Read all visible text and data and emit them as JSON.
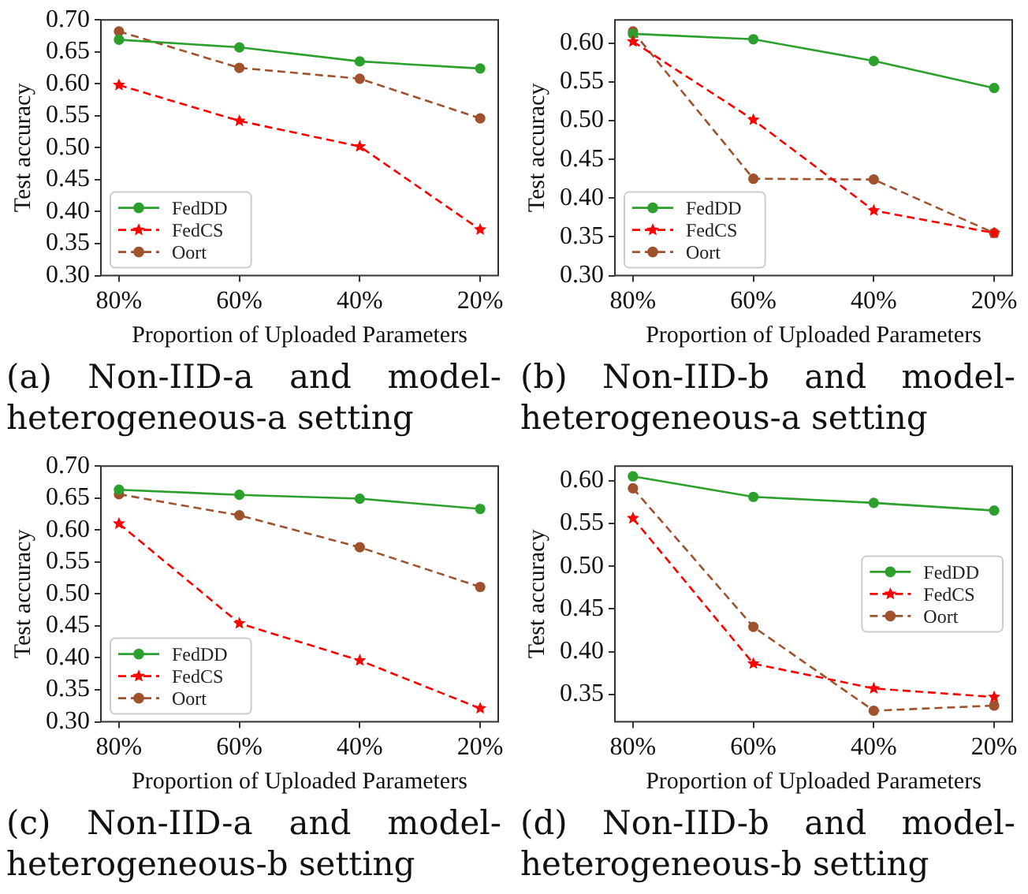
{
  "chart_data": [
    {
      "type": "line",
      "title": "(a) Non-IID-a and model-heterogeneous-a setting",
      "xlabel": "Proportion of Uploaded Parameters",
      "ylabel": "Test accuracy",
      "categories": [
        "80%",
        "60%",
        "40%",
        "20%"
      ],
      "series": [
        {
          "name": "FedDD",
          "color": "#2ca02c",
          "marker": "circle",
          "line_style": "solid",
          "values": [
            0.669,
            0.657,
            0.635,
            0.624
          ]
        },
        {
          "name": "FedCS",
          "color": "#ff0000",
          "marker": "star",
          "line_style": "dashed",
          "values": [
            0.598,
            0.542,
            0.502,
            0.372
          ]
        },
        {
          "name": "Oort",
          "color": "#a0522d",
          "marker": "circle",
          "line_style": "dashed",
          "values": [
            0.682,
            0.625,
            0.608,
            0.546
          ]
        }
      ],
      "ylim": [
        0.3,
        0.7
      ],
      "yticks": [
        {
          "value": 0.3,
          "label": "0.30"
        },
        {
          "value": 0.35,
          "label": "0.35"
        },
        {
          "value": 0.4,
          "label": "0.40"
        },
        {
          "value": 0.45,
          "label": "0.45"
        },
        {
          "value": 0.5,
          "label": "0.50"
        },
        {
          "value": 0.55,
          "label": "0.55"
        },
        {
          "value": 0.6,
          "label": "0.60"
        },
        {
          "value": 0.65,
          "label": "0.65"
        },
        {
          "value": 0.7,
          "label": "0.70"
        }
      ],
      "grid": false,
      "legend": "bottom left"
    },
    {
      "type": "line",
      "title": "(b) Non-IID-b and model-heterogeneous-a setting",
      "xlabel": "Proportion of Uploaded Parameters",
      "ylabel": "Test accuracy",
      "categories": [
        "80%",
        "60%",
        "40%",
        "20%"
      ],
      "series": [
        {
          "name": "FedDD",
          "color": "#2ca02c",
          "marker": "circle",
          "line_style": "solid",
          "values": [
            0.612,
            0.605,
            0.577,
            0.542
          ]
        },
        {
          "name": "FedCS",
          "color": "#ff0000",
          "marker": "star",
          "line_style": "dashed",
          "values": [
            0.602,
            0.501,
            0.384,
            0.355
          ]
        },
        {
          "name": "Oort",
          "color": "#a0522d",
          "marker": "circle",
          "line_style": "dashed",
          "values": [
            0.615,
            0.425,
            0.424,
            0.355
          ]
        }
      ],
      "ylim": [
        0.3,
        0.63
      ],
      "yticks": [
        {
          "value": 0.3,
          "label": "0.30"
        },
        {
          "value": 0.35,
          "label": "0.35"
        },
        {
          "value": 0.4,
          "label": "0.40"
        },
        {
          "value": 0.45,
          "label": "0.45"
        },
        {
          "value": 0.5,
          "label": "0.50"
        },
        {
          "value": 0.55,
          "label": "0.55"
        },
        {
          "value": 0.6,
          "label": "0.60"
        }
      ],
      "grid": false,
      "legend": "bottom left"
    },
    {
      "type": "line",
      "title": "(c) Non-IID-a and model-heterogeneous-b setting",
      "xlabel": "Proportion of Uploaded Parameters",
      "ylabel": "Test accuracy",
      "categories": [
        "80%",
        "60%",
        "40%",
        "20%"
      ],
      "series": [
        {
          "name": "FedDD",
          "color": "#2ca02c",
          "marker": "circle",
          "line_style": "solid",
          "values": [
            0.663,
            0.655,
            0.649,
            0.633
          ]
        },
        {
          "name": "FedCS",
          "color": "#ff0000",
          "marker": "star",
          "line_style": "dashed",
          "values": [
            0.61,
            0.454,
            0.396,
            0.321
          ]
        },
        {
          "name": "Oort",
          "color": "#a0522d",
          "marker": "circle",
          "line_style": "dashed",
          "values": [
            0.656,
            0.623,
            0.573,
            0.511
          ]
        }
      ],
      "ylim": [
        0.3,
        0.7
      ],
      "yticks": [
        {
          "value": 0.3,
          "label": "0.30"
        },
        {
          "value": 0.35,
          "label": "0.35"
        },
        {
          "value": 0.4,
          "label": "0.40"
        },
        {
          "value": 0.45,
          "label": "0.45"
        },
        {
          "value": 0.5,
          "label": "0.50"
        },
        {
          "value": 0.55,
          "label": "0.55"
        },
        {
          "value": 0.6,
          "label": "0.60"
        },
        {
          "value": 0.65,
          "label": "0.65"
        },
        {
          "value": 0.7,
          "label": "0.70"
        }
      ],
      "grid": false,
      "legend": "bottom left"
    },
    {
      "type": "line",
      "title": "(d) Non-IID-b and model-heterogeneous-b setting",
      "xlabel": "Proportion of Uploaded Parameters",
      "ylabel": "Test accuracy",
      "categories": [
        "80%",
        "60%",
        "40%",
        "20%"
      ],
      "series": [
        {
          "name": "FedDD",
          "color": "#2ca02c",
          "marker": "circle",
          "line_style": "solid",
          "values": [
            0.605,
            0.581,
            0.574,
            0.565
          ]
        },
        {
          "name": "FedCS",
          "color": "#ff0000",
          "marker": "star",
          "line_style": "dashed",
          "values": [
            0.556,
            0.386,
            0.357,
            0.347
          ]
        },
        {
          "name": "Oort",
          "color": "#a0522d",
          "marker": "circle",
          "line_style": "dashed",
          "values": [
            0.591,
            0.429,
            0.331,
            0.337
          ]
        }
      ],
      "ylim": [
        0.318,
        0.617
      ],
      "yticks": [
        {
          "value": 0.35,
          "label": "0.35"
        },
        {
          "value": 0.4,
          "label": "0.40"
        },
        {
          "value": 0.45,
          "label": "0.45"
        },
        {
          "value": 0.5,
          "label": "0.50"
        },
        {
          "value": 0.55,
          "label": "0.55"
        },
        {
          "value": 0.6,
          "label": "0.60"
        }
      ],
      "grid": false,
      "legend": "right"
    }
  ]
}
